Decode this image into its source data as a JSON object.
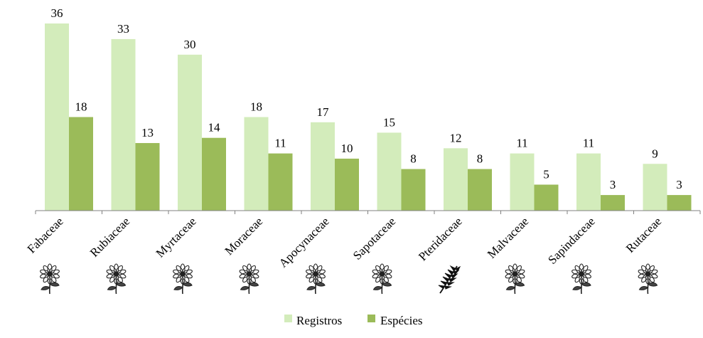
{
  "chart_data": {
    "type": "bar",
    "categories": [
      "Fabaceae",
      "Rubiaceae",
      "Myrtaceae",
      "Moraceae",
      "Apocynaceae",
      "Sapotaceae",
      "Pteridaceae",
      "Malvaceae",
      "Sapindaceae",
      "Rutaceae"
    ],
    "category_icons": [
      "flower-icon",
      "flower-icon",
      "flower-icon",
      "flower-icon",
      "flower-icon",
      "flower-icon",
      "fern-icon",
      "flower-icon",
      "flower-icon",
      "flower-icon"
    ],
    "series": [
      {
        "name": "Registros",
        "values": [
          36,
          33,
          30,
          18,
          17,
          15,
          12,
          11,
          11,
          9
        ],
        "color": "#d3ecbb"
      },
      {
        "name": "Espécies",
        "values": [
          18,
          13,
          14,
          11,
          10,
          8,
          8,
          5,
          3,
          3
        ],
        "color": "#9bbb59"
      }
    ],
    "ylim": [
      0,
      36
    ],
    "grid": false,
    "legend_position": "bottom-center",
    "data_labels": true
  }
}
